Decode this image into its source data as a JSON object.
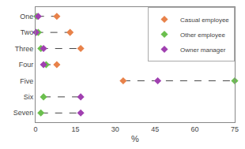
{
  "chart_data": {
    "type": "dot",
    "categories": [
      "One",
      "Two",
      "Three",
      "Four",
      "Five",
      "Six",
      "Seven"
    ],
    "series": [
      {
        "name": "Casual employee",
        "color": "#E8824A",
        "marker": "diamond",
        "values": [
          8,
          13,
          17,
          8,
          33,
          null,
          null
        ]
      },
      {
        "name": "Other employee",
        "color": "#6BBF4E",
        "marker": "diamond",
        "values": [
          0.5,
          1,
          2,
          4,
          75,
          3,
          2
        ]
      },
      {
        "name": "Owner manager",
        "color": "#A040B0",
        "marker": "diamond",
        "values": [
          1,
          0.2,
          3,
          3,
          46,
          17,
          17
        ]
      }
    ],
    "xlabel": "%",
    "xlim": [
      0,
      75
    ],
    "xticks": [
      0,
      15,
      30,
      45,
      60,
      75
    ],
    "grid": false,
    "legend": "upper right",
    "line_style": "dashed"
  }
}
